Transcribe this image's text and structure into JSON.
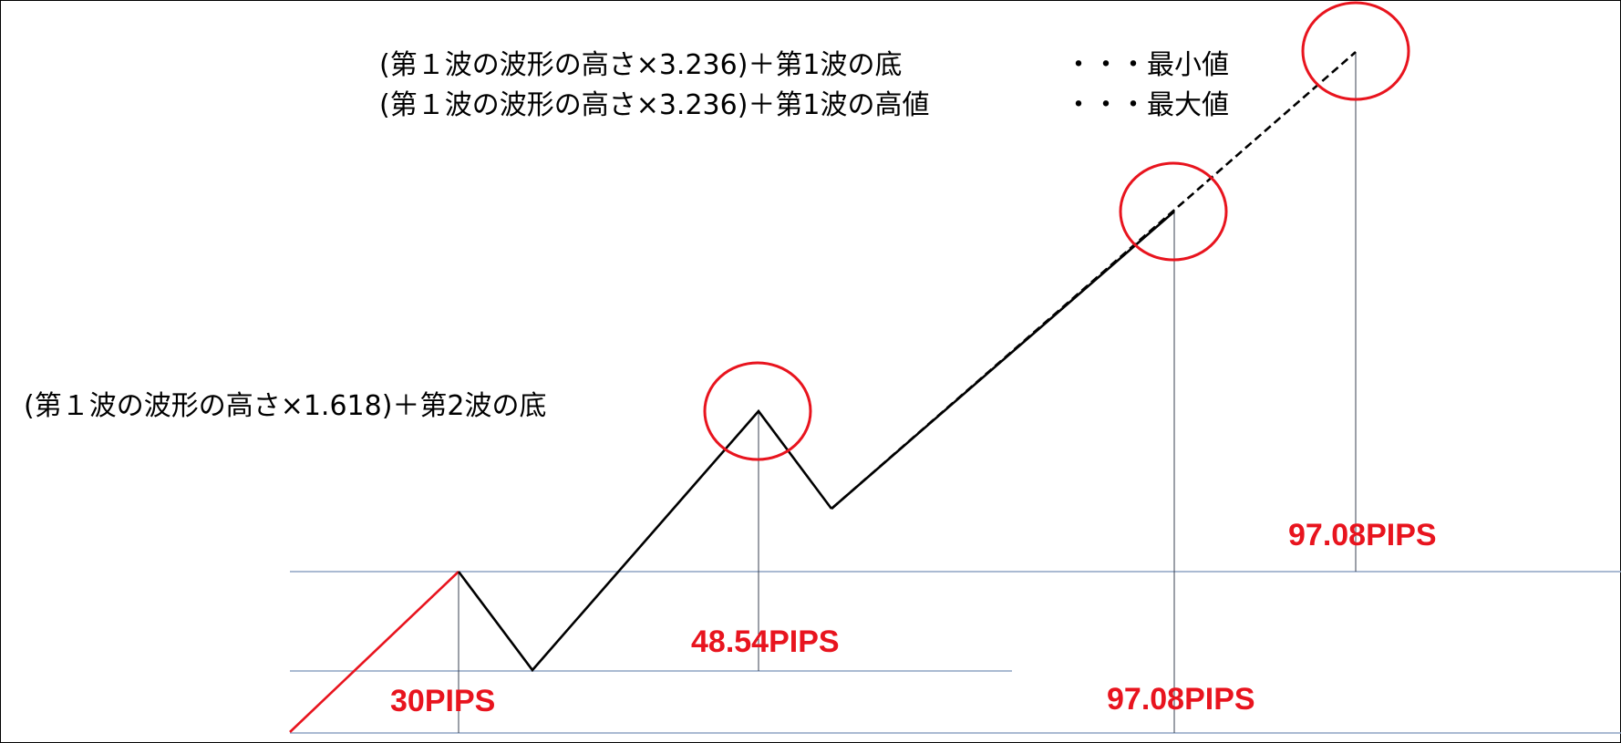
{
  "annotations": {
    "formula_min": "(第１波の波形の高さ×3.236)＋第1波の底",
    "formula_max": "(第１波の波形の高さ×3.236)＋第1波の高値",
    "legend_min": "・・・最小値",
    "legend_max": "・・・最大値",
    "formula_wave3": "(第１波の波形の高さ×1.618)＋第2波の底"
  },
  "measurements": {
    "wave1_height": "30PIPS",
    "wave3_target": "48.54PIPS",
    "wave5_min_target": "97.08PIPS",
    "wave5_max_target": "97.08PIPS"
  },
  "colors": {
    "wave1_line": "#e8141e",
    "wave_line": "#000000",
    "target_circle": "#e8141e",
    "pips_text": "#e8141e",
    "guide_line": "#8ea4c4",
    "drop_line": "#3a4250"
  }
}
